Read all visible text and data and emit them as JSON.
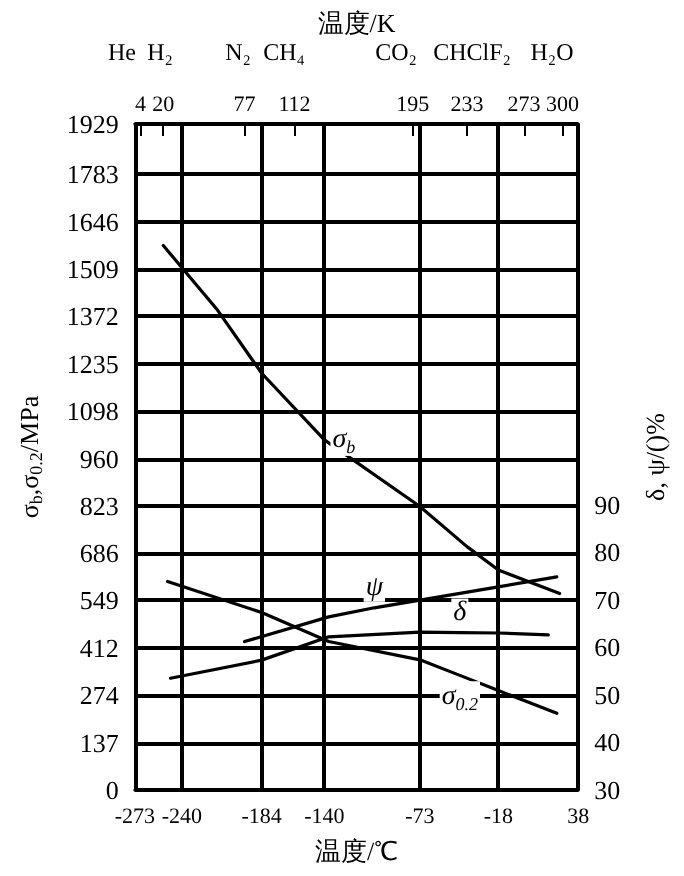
{
  "chart_data": {
    "type": "line",
    "xlabel": "温度/℃",
    "x2label": "温度/K",
    "ylabel": "σ$_{b}$,σ$_{0.2}$/MPa",
    "y2label": "δ, ψ/()%",
    "xlim": [
      -273,
      38
    ],
    "xticks": [
      -273,
      -240,
      -184,
      -140,
      -73,
      -18,
      38
    ],
    "x2lim": [
      0,
      311
    ],
    "x2ticks": [
      4,
      20,
      77,
      112,
      195,
      233,
      273,
      300
    ],
    "ylim": [
      0,
      1929
    ],
    "yticks": [
      0,
      137,
      274,
      412,
      549,
      686,
      823,
      960,
      1098,
      1235,
      1372,
      1509,
      1646,
      1783,
      1929
    ],
    "y2lim": [
      30,
      170
    ],
    "y2ticks": [
      30,
      40,
      50,
      60,
      70,
      80,
      90
    ],
    "grid": true,
    "marker": "none",
    "line_style": "solid",
    "annotations": [
      "He",
      "H₂",
      "N₂",
      "CH₄",
      "CO₂",
      "CHClF₂",
      "H₂O"
    ],
    "series": [
      {
        "name": "σ$_{b}$",
        "color": "#000000",
        "x": [
          -253,
          -215,
          -184,
          -140,
          -73,
          -40,
          -18,
          25
        ],
        "values": [
          1577,
          1390,
          1207,
          1014,
          821,
          705,
          637,
          569
        ]
      },
      {
        "name": "ψ",
        "color": "#000000",
        "axis": "y2",
        "x": [
          -196,
          -137,
          -105,
          -73,
          -18,
          23
        ],
        "values": [
          61.2,
          66.4,
          68.3,
          69.9,
          72.7,
          74.8
        ]
      },
      {
        "name": "δ",
        "color": "#000000",
        "axis": "y2",
        "x": [
          -248,
          -184,
          -137,
          -73,
          -45,
          -18,
          17
        ],
        "values": [
          53.5,
          57.3,
          62.2,
          63.2,
          63.1,
          63.0,
          62.6
        ]
      },
      {
        "name": "σ$_{0.2}$",
        "color": "#000000",
        "x": [
          -250,
          -184,
          -137,
          -73,
          -45,
          -18,
          23
        ],
        "values": [
          604,
          514,
          430,
          377,
          332,
          288,
          222
        ]
      }
    ]
  }
}
